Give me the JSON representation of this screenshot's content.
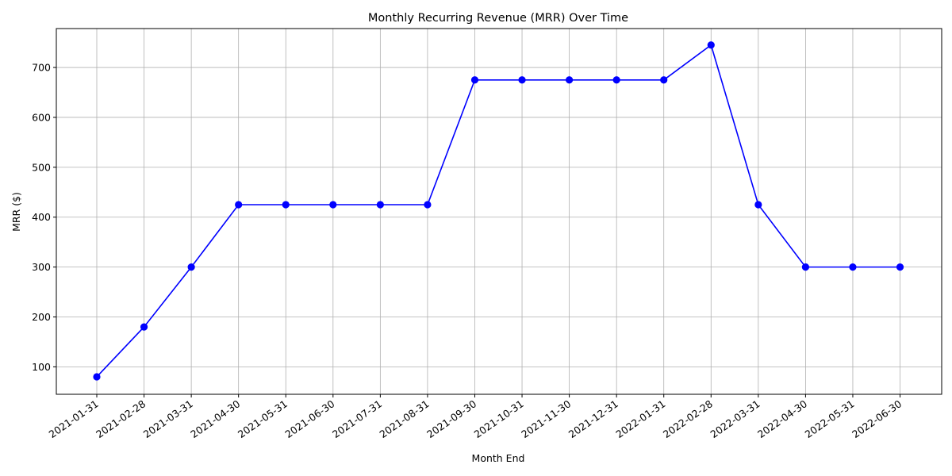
{
  "chart_data": {
    "type": "line",
    "title": "Monthly Recurring Revenue (MRR) Over Time",
    "xlabel": "Month End",
    "ylabel": "MRR ($)",
    "ylim": [
      45,
      778
    ],
    "yticks": [
      100,
      200,
      300,
      400,
      500,
      600,
      700
    ],
    "grid": true,
    "categories": [
      "2021-01-31",
      "2021-02-28",
      "2021-03-31",
      "2021-04-30",
      "2021-05-31",
      "2021-06-30",
      "2021-07-31",
      "2021-08-31",
      "2021-09-30",
      "2021-10-31",
      "2021-11-30",
      "2021-12-31",
      "2022-01-31",
      "2022-02-28",
      "2022-03-31",
      "2022-04-30",
      "2022-05-31",
      "2022-06-30"
    ],
    "series": [
      {
        "color": "#0000ff",
        "marker": "circle",
        "values": [
          80,
          180,
          300,
          425,
          425,
          425,
          425,
          425,
          675,
          675,
          675,
          675,
          675,
          745,
          425,
          300,
          300,
          300
        ]
      }
    ]
  }
}
